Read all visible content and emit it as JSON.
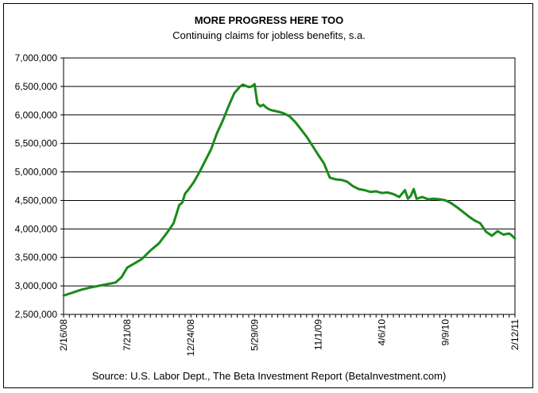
{
  "chart_data": {
    "type": "line",
    "title": "MORE PROGRESS HERE TOO",
    "subtitle": "Continuing claims for jobless benefits, s.a.",
    "source": "Source: U.S. Labor Dept., The Beta Investment Report (BetaInvestment.com)",
    "xlabel": "",
    "ylabel": "",
    "ylim": [
      2500000,
      7000000
    ],
    "y_ticks": [
      2500000,
      3000000,
      3500000,
      4000000,
      4500000,
      5000000,
      5500000,
      6000000,
      6500000,
      7000000
    ],
    "y_tick_labels": [
      "2,500,000",
      "3,000,000",
      "3,500,000",
      "4,000,000",
      "4,500,000",
      "5,000,000",
      "5,500,000",
      "6,000,000",
      "6,500,000",
      "7,000,000"
    ],
    "x_tick_labels": [
      "2/16/08",
      "7/21/08",
      "12/24/08",
      "5/29/09",
      "11/1/09",
      "4/6/10",
      "9/9/10",
      "2/12/11"
    ],
    "x_range_weeks": [
      0,
      156
    ],
    "x_ticks_weeks": [
      0,
      22,
      44,
      66,
      88,
      110,
      132,
      156
    ],
    "grid": "horizontal",
    "legend": "none",
    "line_color": "#1a8a1a",
    "series": [
      {
        "x": [
          0,
          3,
          6,
          9,
          12,
          15,
          18,
          20,
          22,
          24,
          27,
          30,
          33,
          36,
          38,
          40,
          41,
          42,
          43,
          45,
          47,
          49,
          51,
          53,
          55,
          57,
          59,
          61,
          62,
          63,
          64,
          65,
          66,
          67,
          68,
          69,
          70,
          71,
          72,
          74,
          76,
          78,
          80,
          82,
          84,
          86,
          88,
          90,
          92,
          94,
          96,
          98,
          100,
          102,
          104,
          106,
          108,
          110,
          112,
          114,
          116,
          117,
          118,
          119,
          120,
          121,
          122,
          124,
          126,
          128,
          130,
          132,
          134,
          136,
          138,
          140,
          142,
          144,
          146,
          148,
          150,
          152,
          154,
          155,
          156
        ],
        "values": [
          2830000,
          2880000,
          2930000,
          2970000,
          3000000,
          3030000,
          3060000,
          3150000,
          3320000,
          3380000,
          3470000,
          3620000,
          3750000,
          3950000,
          4100000,
          4420000,
          4460000,
          4620000,
          4680000,
          4820000,
          5000000,
          5200000,
          5400000,
          5680000,
          5900000,
          6150000,
          6380000,
          6500000,
          6530000,
          6510000,
          6490000,
          6500000,
          6540000,
          6200000,
          6150000,
          6180000,
          6130000,
          6100000,
          6080000,
          6060000,
          6030000,
          5980000,
          5880000,
          5750000,
          5620000,
          5460000,
          5300000,
          5150000,
          4900000,
          4870000,
          4860000,
          4830000,
          4750000,
          4700000,
          4680000,
          4650000,
          4660000,
          4630000,
          4640000,
          4610000,
          4560000,
          4620000,
          4680000,
          4530000,
          4580000,
          4700000,
          4530000,
          4560000,
          4520000,
          4530000,
          4520000,
          4500000,
          4450000,
          4380000,
          4300000,
          4220000,
          4150000,
          4100000,
          3950000,
          3880000,
          3960000,
          3900000,
          3920000,
          3880000,
          3830000
        ]
      }
    ]
  }
}
